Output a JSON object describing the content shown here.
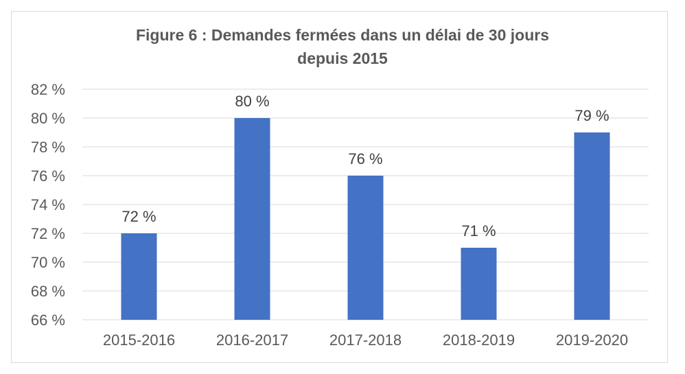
{
  "chart_data": {
    "type": "bar",
    "title_lines": [
      "Figure 6 : Demandes fermées dans un délai de 30 jours",
      "depuis 2015"
    ],
    "categories": [
      "2015-2016",
      "2016-2017",
      "2017-2018",
      "2018-2019",
      "2019-2020"
    ],
    "values": [
      72,
      80,
      76,
      71,
      79
    ],
    "data_labels": [
      "72 %",
      "80 %",
      "76 %",
      "71 %",
      "79 %"
    ],
    "ylim": [
      66,
      82
    ],
    "yticks": [
      66,
      68,
      70,
      72,
      74,
      76,
      78,
      80,
      82
    ],
    "ytick_labels": [
      "66 %",
      "68 %",
      "70 %",
      "72 %",
      "74 %",
      "76 %",
      "78 %",
      "80 %",
      "82 %"
    ],
    "xlabel": "",
    "ylabel": "",
    "grid": true,
    "legend": "none",
    "bar_color": "#4472c4"
  }
}
